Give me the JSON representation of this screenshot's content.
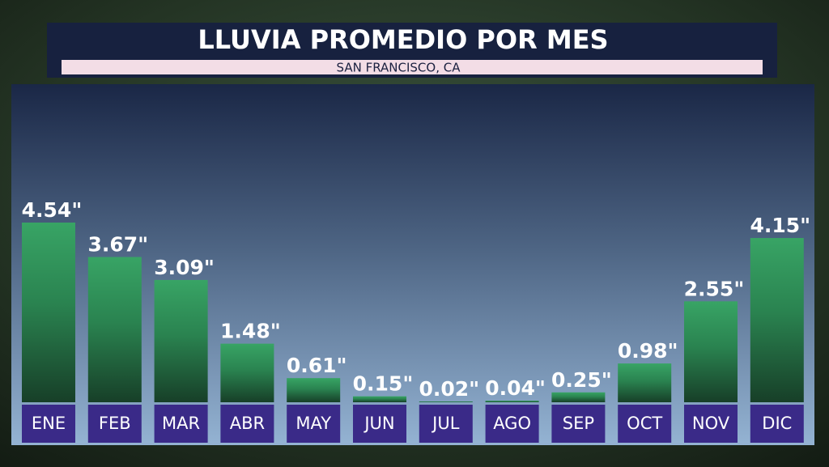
{
  "chart_data": {
    "type": "bar",
    "title": "LLUVIA PROMEDIO POR MES",
    "subtitle": "SAN FRANCISCO, CA",
    "categories": [
      "ENE",
      "FEB",
      "MAR",
      "ABR",
      "MAY",
      "JUN",
      "JUL",
      "AGO",
      "SEP",
      "OCT",
      "NOV",
      "DIC"
    ],
    "values": [
      4.54,
      3.67,
      3.09,
      1.48,
      0.61,
      0.15,
      0.02,
      0.04,
      0.25,
      0.98,
      2.55,
      4.15
    ],
    "value_labels": [
      "4.54\"",
      "3.67\"",
      "3.09\"",
      "1.48\"",
      "0.61\"",
      "0.15\"",
      "0.02\"",
      "0.04\"",
      "0.25\"",
      "0.98\"",
      "2.55\"",
      "4.15\""
    ],
    "color": "#35a163"
  }
}
